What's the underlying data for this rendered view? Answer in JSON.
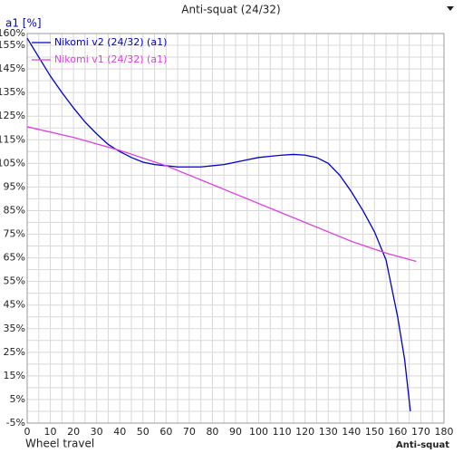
{
  "chart_data": {
    "type": "line",
    "title": "Anti-squat (24/32)",
    "y_label": "a1 [%]",
    "x_label": "Wheel travel",
    "corner_label": "Anti-squat",
    "xlim": [
      0,
      180
    ],
    "ylim": [
      -5,
      160
    ],
    "xticks": [
      0,
      10,
      20,
      30,
      40,
      50,
      60,
      70,
      80,
      90,
      100,
      110,
      120,
      130,
      140,
      150,
      160,
      170,
      180
    ],
    "x_minor_ticks": [
      5,
      15,
      25,
      35,
      45,
      55,
      65,
      75,
      85,
      95,
      105,
      115,
      125,
      135,
      145,
      155,
      165,
      175
    ],
    "yticks": [
      {
        "value": -5,
        "label": "-5%"
      },
      {
        "value": 5,
        "label": "5%"
      },
      {
        "value": 15,
        "label": "15%"
      },
      {
        "value": 25,
        "label": "25%"
      },
      {
        "value": 35,
        "label": "35%"
      },
      {
        "value": 45,
        "label": "45%"
      },
      {
        "value": 55,
        "label": "55%"
      },
      {
        "value": 65,
        "label": "65%"
      },
      {
        "value": 75,
        "label": "75%"
      },
      {
        "value": 85,
        "label": "85%"
      },
      {
        "value": 95,
        "label": "95%"
      },
      {
        "value": 105,
        "label": "105%"
      },
      {
        "value": 115,
        "label": "115%"
      },
      {
        "value": 125,
        "label": "125%"
      },
      {
        "value": 135,
        "label": "135%"
      },
      {
        "value": 145,
        "label": "145%"
      },
      {
        "value": 155,
        "label": "155%"
      },
      {
        "value": 160,
        "label": "160%"
      }
    ],
    "y_minor_ticks": [
      0,
      10,
      20,
      30,
      40,
      50,
      60,
      70,
      80,
      90,
      100,
      110,
      120,
      130,
      140,
      150
    ],
    "grid": true,
    "series": [
      {
        "name": "Nikomi v2 (24/32) (a1)",
        "color": "#0000cc",
        "x": [
          0,
          5,
          10,
          15,
          20,
          25,
          30,
          35,
          40,
          45,
          50,
          55,
          60,
          65,
          70,
          75,
          80,
          85,
          90,
          95,
          100,
          105,
          110,
          115,
          120,
          125,
          130,
          135,
          140,
          145,
          150,
          155,
          160,
          163,
          165.5
        ],
        "values": [
          158,
          150,
          142,
          135,
          128.5,
          122.5,
          117.5,
          113,
          110,
          107.5,
          105.5,
          104.5,
          104,
          103.5,
          103.5,
          103.5,
          104,
          104.5,
          105.5,
          106.5,
          107.5,
          108,
          108.5,
          108.8,
          108.5,
          107.5,
          105,
          100,
          93,
          85,
          76,
          64,
          40,
          22,
          0
        ]
      },
      {
        "name": "Nikomi v1 (24/32) (a1)",
        "color": "#e040e0",
        "x": [
          0,
          20,
          40,
          60,
          80,
          100,
          120,
          140,
          155,
          168
        ],
        "values": [
          120.5,
          116,
          110.5,
          104,
          96,
          88,
          80,
          72,
          67,
          63.5
        ]
      }
    ]
  }
}
